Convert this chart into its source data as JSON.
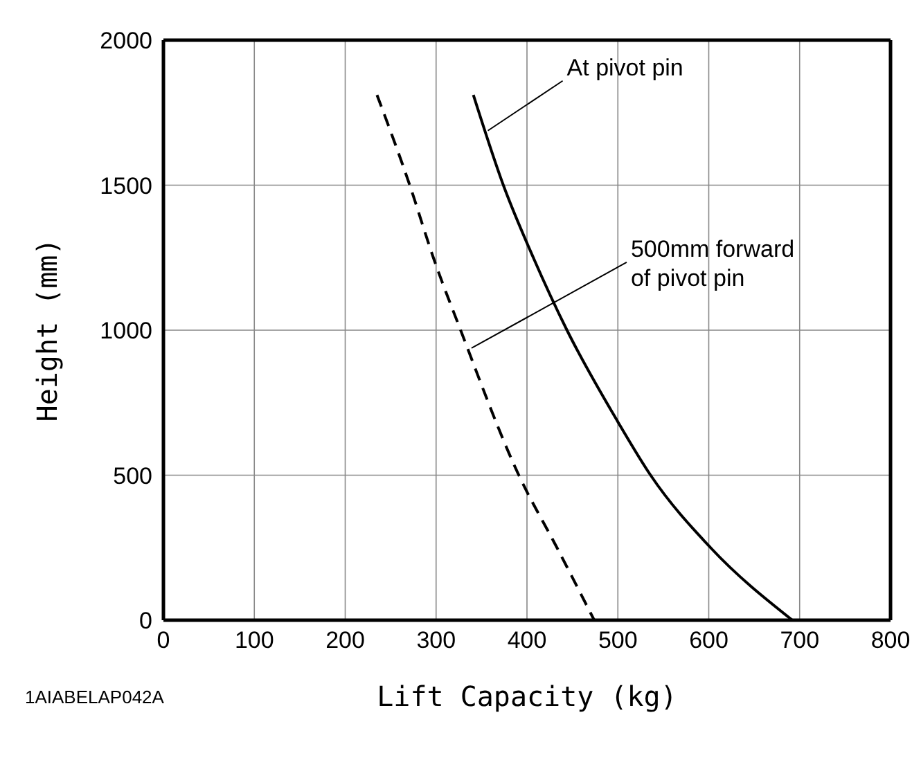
{
  "chart_data": {
    "type": "line",
    "xlabel": "Lift Capacity (kg)",
    "ylabel": "Height (mm)",
    "xlim": [
      0,
      800
    ],
    "xticks": [
      0,
      100,
      200,
      300,
      400,
      500,
      600,
      700,
      800
    ],
    "ylim": [
      0,
      2000
    ],
    "yticks": [
      0,
      500,
      1000,
      1500,
      2000
    ],
    "grid": true,
    "marker": "none",
    "series": [
      {
        "color": "#000000",
        "line_style": "solid",
        "x": [
          341,
          374,
          407,
          444,
          500,
          536,
          602,
          692
        ],
        "values": [
          1811,
          1500,
          1250,
          1000,
          684,
          500,
          250,
          0
        ]
      },
      {
        "color": "#000000",
        "line_style": "dashed",
        "x": [
          235,
          271,
          297,
          327,
          391,
          433,
          474
        ],
        "values": [
          1811,
          1500,
          1250,
          1000,
          500,
          250,
          0
        ]
      }
    ],
    "annotations": [
      {
        "text": "At pivot pin",
        "x": 357,
        "y": 1688
      },
      {
        "text": "500mm forward\nof pivot pin",
        "x": 339,
        "y": 938
      },
      "1AIABELAP042A"
    ]
  }
}
